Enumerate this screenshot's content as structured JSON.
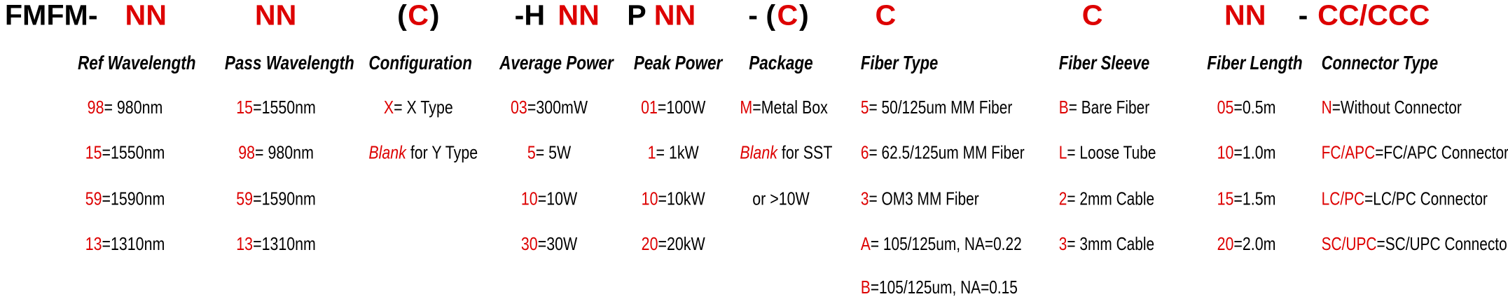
{
  "title_segments": [
    {
      "text": "FMFM-",
      "color": "#000000"
    },
    {
      "text": "NN",
      "color": "#dd0000"
    },
    {
      "text": "NN",
      "color": "#dd0000"
    },
    {
      "text": "(",
      "color": "#000000"
    },
    {
      "text": "C",
      "color": "#dd0000"
    },
    {
      "text": ")",
      "color": "#000000"
    },
    {
      "text": "-H ",
      "color": "#000000"
    },
    {
      "text": "NN",
      "color": "#dd0000"
    },
    {
      "text": "P ",
      "color": "#000000"
    },
    {
      "text": "NN",
      "color": "#dd0000"
    },
    {
      "text": "- (",
      "color": "#000000"
    },
    {
      "text": "C",
      "color": "#dd0000"
    },
    {
      "text": ")",
      "color": "#000000"
    },
    {
      "text": "C",
      "color": "#dd0000"
    },
    {
      "text": "C",
      "color": "#dd0000"
    },
    {
      "text": "NN",
      "color": "#dd0000"
    },
    {
      "text": "- ",
      "color": "#000000"
    },
    {
      "text": "CC/CCC",
      "color": "#dd0000"
    }
  ],
  "columns": [
    {
      "header": "Ref Wavelength",
      "align": "center",
      "items": [
        {
          "code": "98",
          "desc": "= 980nm"
        },
        {
          "code": "15",
          "desc": "=1550nm"
        },
        {
          "code": "59",
          "desc": "=1590nm"
        },
        {
          "code": "13",
          "desc": "=1310nm"
        }
      ]
    },
    {
      "header": "Pass Wavelength",
      "align": "center",
      "items": [
        {
          "code": "15",
          "desc": "=1550nm"
        },
        {
          "code": "98",
          "desc": "= 980nm"
        },
        {
          "code": "59",
          "desc": "=1590nm"
        },
        {
          "code": "13",
          "desc": "=1310nm"
        }
      ]
    },
    {
      "header": "Configuration",
      "align": "center",
      "items": [
        {
          "code": "X",
          "desc": "= X Type"
        },
        {
          "code": "Blank",
          "desc": " for Y Type",
          "italic": true
        }
      ]
    },
    {
      "header": "Average Power",
      "align": "center",
      "items": [
        {
          "code": "03",
          "desc": "=300mW"
        },
        {
          "code": "5",
          "desc": "= 5W"
        },
        {
          "code": "10",
          "desc": "=10W"
        },
        {
          "code": "30",
          "desc": "=30W"
        }
      ]
    },
    {
      "header": "Peak Power",
      "align": "center",
      "items": [
        {
          "code": "01",
          "desc": "=100W"
        },
        {
          "code": "1",
          "desc": "= 1kW"
        },
        {
          "code": "10",
          "desc": "=10kW"
        },
        {
          "code": "20",
          "desc": "=20kW"
        }
      ]
    },
    {
      "header": "Package",
      "align": "center",
      "items": [
        {
          "code": "M",
          "desc": "=Metal Box"
        },
        {
          "code": "Blank",
          "desc": " for SST",
          "italic": true
        },
        {
          "code": "",
          "desc": "or >10W"
        }
      ]
    },
    {
      "header": "Fiber Type",
      "align": "left",
      "items": [
        {
          "code": "5",
          "desc": "= 50/125um MM Fiber"
        },
        {
          "code": "6",
          "desc": "= 62.5/125um MM Fiber"
        },
        {
          "code": "3",
          "desc": "= OM3 MM Fiber"
        },
        {
          "code": "A",
          "desc": "= 105/125um, NA=0.22"
        },
        {
          "code": "B",
          "desc": "=105/125um, NA=0.15"
        }
      ]
    },
    {
      "header": "Fiber Sleeve",
      "align": "left",
      "items": [
        {
          "code": "B",
          "desc": "= Bare Fiber"
        },
        {
          "code": "L",
          "desc": "= Loose Tube"
        },
        {
          "code": "2",
          "desc": "= 2mm Cable"
        },
        {
          "code": "3",
          "desc": "= 3mm Cable"
        }
      ]
    },
    {
      "header": "Fiber Length",
      "align": "center",
      "items": [
        {
          "code": "05",
          "desc": "=0.5m"
        },
        {
          "code": "10",
          "desc": "=1.0m"
        },
        {
          "code": "15",
          "desc": "=1.5m"
        },
        {
          "code": "20",
          "desc": "=2.0m"
        }
      ]
    },
    {
      "header": "Connector Type",
      "align": "left",
      "items": [
        {
          "code": "N",
          "desc": "=Without Connector"
        },
        {
          "code": "FC/APC",
          "desc": "=FC/APC Connector"
        },
        {
          "code": "LC/PC",
          "desc": "=LC/PC Connector"
        },
        {
          "code": "SC/UPC",
          "desc": "=SC/UPC Connector"
        }
      ]
    }
  ]
}
